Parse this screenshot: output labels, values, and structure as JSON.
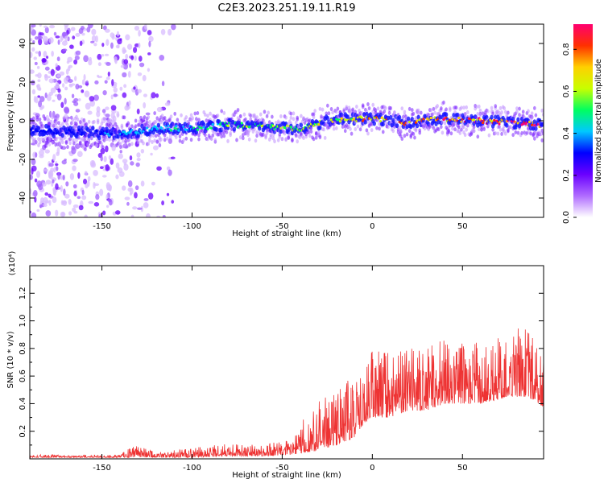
{
  "title": "C2E3.2023.251.19.11.R19",
  "chart_data": [
    {
      "type": "heatmap",
      "xlabel": "Height of straight line (km)",
      "ylabel": "Frequency (Hz)",
      "xlim": [
        -190,
        95
      ],
      "ylim": [
        -50,
        50
      ],
      "x_ticks": [
        -150,
        -100,
        -50,
        0,
        50
      ],
      "y_ticks": [
        -40,
        -20,
        0,
        20,
        40
      ],
      "colorbar": {
        "label": "Normalized spectral amplitude",
        "range": [
          0.0,
          0.92
        ],
        "ticks": [
          "0.0",
          "0.2",
          "0.4",
          "0.6",
          "0.8"
        ],
        "colormap": [
          "#ffffff",
          "#b06cff",
          "#6a00ff",
          "#0000ff",
          "#00c8ff",
          "#00ff60",
          "#c8ff00",
          "#ffd000",
          "#ff3000",
          "#ff0070"
        ]
      },
      "centerline_freq": [
        [
          -190,
          -5
        ],
        [
          -160,
          -6
        ],
        [
          -140,
          -7
        ],
        [
          -120,
          -4
        ],
        [
          -100,
          -4
        ],
        [
          -80,
          -2
        ],
        [
          -60,
          -3
        ],
        [
          -40,
          -4
        ],
        [
          -20,
          1
        ],
        [
          0,
          1
        ],
        [
          20,
          -1
        ],
        [
          40,
          1
        ],
        [
          60,
          0
        ],
        [
          80,
          -1
        ],
        [
          95,
          -2
        ]
      ]
    },
    {
      "type": "line",
      "xlabel": "Height of straight line (km)",
      "ylabel": "SNR (10 * v/v)",
      "y_multiplier": "(x10⁴)",
      "xlim": [
        -190,
        95
      ],
      "ylim": [
        0,
        1.4
      ],
      "x_ticks": [
        -150,
        -100,
        -50,
        0,
        50
      ],
      "y_ticks": [
        "0.2",
        "0.4",
        "0.6",
        "0.8",
        "1.0",
        "1.2"
      ],
      "series": [
        {
          "color": "#ee3333",
          "envelope": [
            [
              -190,
              0.01,
              0.03
            ],
            [
              -140,
              0.01,
              0.03
            ],
            [
              -132,
              0.01,
              0.1
            ],
            [
              -120,
              0.01,
              0.05
            ],
            [
              -100,
              0.01,
              0.08
            ],
            [
              -80,
              0.02,
              0.11
            ],
            [
              -60,
              0.02,
              0.1
            ],
            [
              -45,
              0.03,
              0.16
            ],
            [
              -35,
              0.05,
              0.38
            ],
            [
              -30,
              0.06,
              0.45
            ],
            [
              -20,
              0.1,
              0.5
            ],
            [
              -10,
              0.15,
              0.62
            ],
            [
              -5,
              0.25,
              0.7
            ],
            [
              0,
              0.3,
              0.78
            ],
            [
              10,
              0.3,
              0.78
            ],
            [
              20,
              0.35,
              0.8
            ],
            [
              30,
              0.35,
              0.8
            ],
            [
              40,
              0.4,
              0.88
            ],
            [
              50,
              0.4,
              0.85
            ],
            [
              60,
              0.4,
              0.85
            ],
            [
              75,
              0.45,
              0.9
            ],
            [
              85,
              0.45,
              0.98
            ],
            [
              95,
              0.38,
              0.75
            ]
          ]
        }
      ]
    }
  ]
}
